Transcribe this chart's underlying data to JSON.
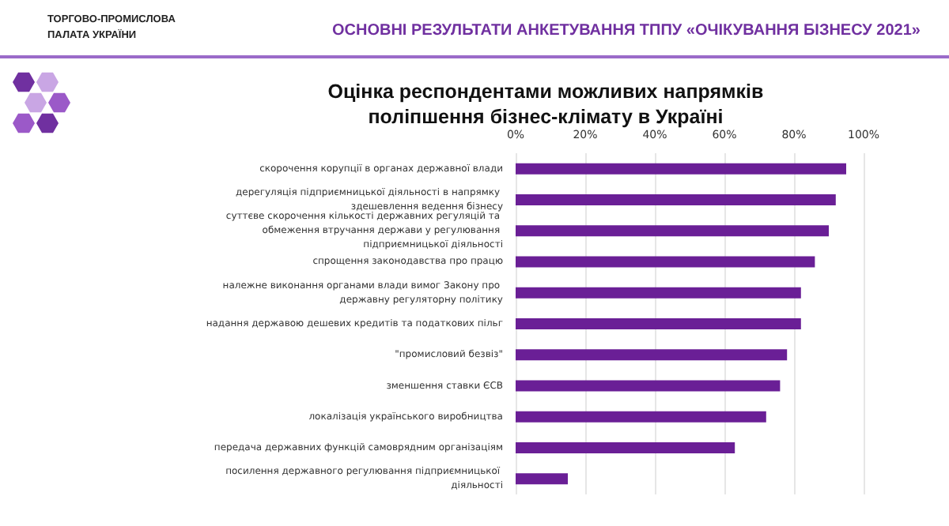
{
  "chart_data": {
    "type": "bar",
    "orientation": "horizontal",
    "title": "Оцінка респондентами можливих напрямків поліпшення бізнес-клімату в Україні",
    "annotations": [
      "ОСНОВНІ РЕЗУЛЬТАТИ АНКЕТУВАННЯ ТППУ «ОЧІКУВАННЯ БІЗНЕСУ 2021»",
      "ТОРГОВО-ПРОМИСЛОВА ПАЛАТА УКРАЇНИ"
    ],
    "categories": [
      "скорочення корупції в органах державної влади",
      "дерегуляція підприємницької діяльності в напрямку здешевлення ведення бізнесу",
      "суттєве скорочення кількості державних регуляцій та обмеження втручання держави у регулювання підприємницької діяльності",
      "спрощення законодавства про працю",
      "належне виконання органами влади вимог Закону про державну регуляторну політику",
      "надання державою дешевих кредитів та податкових пільг",
      "\"промисловий безвіз\"",
      "зменшення ставки ЄСВ",
      "локалізація українського виробництва",
      "передача державних функцій самоврядним організаціям",
      "посилення державного регулювання підприємницької діяльності"
    ],
    "values": [
      95,
      92,
      90,
      86,
      82,
      82,
      78,
      76,
      72,
      63,
      15
    ],
    "color": "#6a1f96",
    "xlim": [
      0,
      100
    ],
    "xticks": [
      {
        "value": 0,
        "label": "0%"
      },
      {
        "value": 20,
        "label": "20%"
      },
      {
        "value": 40,
        "label": "40%"
      },
      {
        "value": 60,
        "label": "60%"
      },
      {
        "value": 80,
        "label": "80%"
      },
      {
        "value": 100,
        "label": "100%"
      }
    ],
    "grid": true
  }
}
